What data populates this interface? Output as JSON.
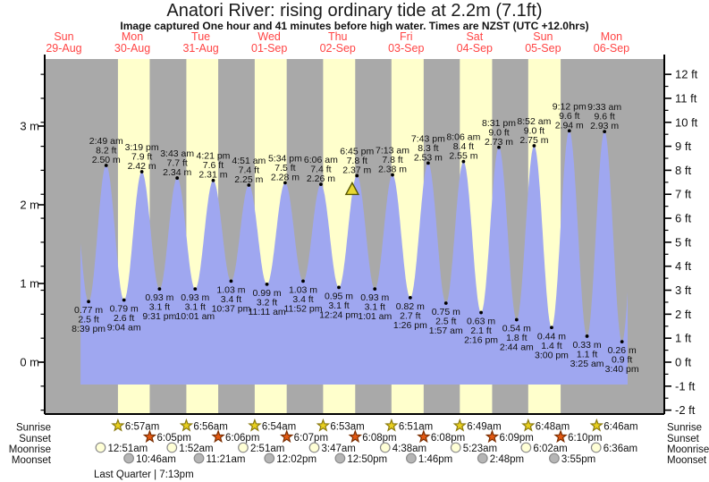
{
  "title": "Anatori River: rising ordinary tide at 2.2m (7.1ft)",
  "subtitle": "Image captured One hour and 41 minutes before high water. Times are NZST (UTC +12.0hrs)",
  "days": [
    {
      "name": "Sun",
      "date": "29-Aug"
    },
    {
      "name": "Mon",
      "date": "30-Aug"
    },
    {
      "name": "Tue",
      "date": "31-Aug"
    },
    {
      "name": "Wed",
      "date": "01-Sep"
    },
    {
      "name": "Thu",
      "date": "02-Sep"
    },
    {
      "name": "Fri",
      "date": "03-Sep"
    },
    {
      "name": "Sat",
      "date": "04-Sep"
    },
    {
      "name": "Sun",
      "date": "05-Sep"
    },
    {
      "name": "Mon",
      "date": "06-Sep"
    }
  ],
  "y_axis": {
    "left_tick_labels": [
      "0 m",
      "1 m",
      "2 m",
      "3 m"
    ],
    "right_unit": "ft",
    "right_min_ft": -2,
    "right_max_ft": 12
  },
  "chart_data": {
    "type": "area",
    "series_name": "tide height",
    "units": {
      "primary": "m",
      "secondary": "ft"
    },
    "ylim_m": [
      -0.66,
      3.85
    ],
    "x_domain": "Sun 29-Aug 05:16 to Tue 07-Sep 06:28 NZST",
    "visible_start": {
      "day": 0,
      "time": "5:50 pm"
    },
    "visible_end": {
      "day": 8,
      "time": "5:40 pm"
    },
    "current_time_marker": {
      "day": 4,
      "time": "5:04 pm",
      "level_m": 2.2,
      "symbol": "yellow-triangle"
    },
    "daylight_band_days": [
      1,
      2,
      3,
      4,
      5,
      6,
      7
    ],
    "extremes": [
      {
        "kind": "low",
        "day": 0,
        "time": "8:39 pm",
        "m": 0.77,
        "ft": 2.5
      },
      {
        "kind": "high",
        "day": 1,
        "time": "2:49 am",
        "m": 2.5,
        "ft": 8.2
      },
      {
        "kind": "low",
        "day": 1,
        "time": "9:04 am",
        "m": 0.79,
        "ft": 2.6
      },
      {
        "kind": "high",
        "day": 1,
        "time": "3:19 pm",
        "m": 2.42,
        "ft": 7.9
      },
      {
        "kind": "low",
        "day": 1,
        "time": "9:31 pm",
        "m": 0.93,
        "ft": 3.1
      },
      {
        "kind": "high",
        "day": 2,
        "time": "3:43 am",
        "m": 2.34,
        "ft": 7.7
      },
      {
        "kind": "low",
        "day": 2,
        "time": "10:01 am",
        "m": 0.93,
        "ft": 3.1
      },
      {
        "kind": "high",
        "day": 2,
        "time": "4:21 pm",
        "m": 2.31,
        "ft": 7.6
      },
      {
        "kind": "low",
        "day": 2,
        "time": "10:37 pm",
        "m": 1.03,
        "ft": 3.4
      },
      {
        "kind": "high",
        "day": 3,
        "time": "4:51 am",
        "m": 2.25,
        "ft": 7.4
      },
      {
        "kind": "low",
        "day": 3,
        "time": "11:11 am",
        "m": 0.99,
        "ft": 3.2
      },
      {
        "kind": "high",
        "day": 3,
        "time": "5:34 pm",
        "m": 2.28,
        "ft": 7.5
      },
      {
        "kind": "low",
        "day": 3,
        "time": "11:52 pm",
        "m": 1.03,
        "ft": 3.4
      },
      {
        "kind": "high",
        "day": 4,
        "time": "6:06 am",
        "m": 2.26,
        "ft": 7.4
      },
      {
        "kind": "low",
        "day": 4,
        "time": "12:24 pm",
        "m": 0.95,
        "ft": 3.1
      },
      {
        "kind": "high",
        "day": 4,
        "time": "6:45 pm",
        "m": 2.37,
        "ft": 7.8
      },
      {
        "kind": "low",
        "day": 5,
        "time": "1:01 am",
        "m": 0.93,
        "ft": 3.1
      },
      {
        "kind": "high",
        "day": 5,
        "time": "7:13 am",
        "m": 2.38,
        "ft": 7.8
      },
      {
        "kind": "low",
        "day": 5,
        "time": "1:26 pm",
        "m": 0.82,
        "ft": 2.7
      },
      {
        "kind": "high",
        "day": 5,
        "time": "7:43 pm",
        "m": 2.53,
        "ft": 8.3
      },
      {
        "kind": "low",
        "day": 6,
        "time": "1:57 am",
        "m": 0.75,
        "ft": 2.5
      },
      {
        "kind": "high",
        "day": 6,
        "time": "8:06 am",
        "m": 2.55,
        "ft": 8.4
      },
      {
        "kind": "low",
        "day": 6,
        "time": "2:16 pm",
        "m": 0.63,
        "ft": 2.1
      },
      {
        "kind": "high",
        "day": 6,
        "time": "8:31 pm",
        "m": 2.73,
        "ft": 9.0
      },
      {
        "kind": "low",
        "day": 7,
        "time": "2:44 am",
        "m": 0.54,
        "ft": 1.8
      },
      {
        "kind": "high",
        "day": 7,
        "time": "8:52 am",
        "m": 2.75,
        "ft": 9.0
      },
      {
        "kind": "low",
        "day": 7,
        "time": "3:00 pm",
        "m": 0.44,
        "ft": 1.4
      },
      {
        "kind": "high",
        "day": 7,
        "time": "9:12 pm",
        "m": 2.94,
        "ft": 9.6
      },
      {
        "kind": "low",
        "day": 8,
        "time": "3:25 am",
        "m": 0.33,
        "ft": 1.1
      },
      {
        "kind": "high",
        "day": 8,
        "time": "9:33 am",
        "m": 2.93,
        "ft": 9.6
      },
      {
        "kind": "low",
        "day": 8,
        "time": "3:40 pm",
        "m": 0.26,
        "ft": 0.9
      }
    ]
  },
  "almanac": {
    "row_labels": [
      "Sunrise",
      "Sunset",
      "Moonrise",
      "Moonset"
    ],
    "sunrise": {
      "label": "Sunrise",
      "icon": "sunrise-star-icon",
      "entries": [
        {
          "day": 1,
          "time": "6:57am"
        },
        {
          "day": 2,
          "time": "6:56am"
        },
        {
          "day": 3,
          "time": "6:54am"
        },
        {
          "day": 4,
          "time": "6:53am"
        },
        {
          "day": 5,
          "time": "6:51am"
        },
        {
          "day": 6,
          "time": "6:49am"
        },
        {
          "day": 7,
          "time": "6:48am"
        },
        {
          "day": 8,
          "time": "6:46am"
        }
      ]
    },
    "sunset": {
      "label": "Sunset",
      "icon": "sunset-star-icon",
      "entries": [
        {
          "day": 1,
          "time": "6:05pm"
        },
        {
          "day": 2,
          "time": "6:06pm"
        },
        {
          "day": 3,
          "time": "6:07pm"
        },
        {
          "day": 4,
          "time": "6:08pm"
        },
        {
          "day": 5,
          "time": "6:08pm"
        },
        {
          "day": 6,
          "time": "6:09pm"
        },
        {
          "day": 7,
          "time": "6:10pm"
        }
      ]
    },
    "moonrise": {
      "label": "Moonrise",
      "icon": "moonrise-circle-icon",
      "entries": [
        {
          "day": 1,
          "time": "12:51am"
        },
        {
          "day": 2,
          "time": "1:52am"
        },
        {
          "day": 3,
          "time": "2:51am"
        },
        {
          "day": 4,
          "time": "3:47am"
        },
        {
          "day": 5,
          "time": "4:38am"
        },
        {
          "day": 6,
          "time": "5:23am"
        },
        {
          "day": 7,
          "time": "6:02am"
        },
        {
          "day": 8,
          "time": "6:36am"
        }
      ]
    },
    "moonset": {
      "label": "Moonset",
      "icon": "moonset-circle-icon",
      "entries": [
        {
          "day": 1,
          "time": "10:46am"
        },
        {
          "day": 2,
          "time": "11:21am"
        },
        {
          "day": 3,
          "time": "12:02pm"
        },
        {
          "day": 4,
          "time": "12:50pm"
        },
        {
          "day": 5,
          "time": "1:46pm"
        },
        {
          "day": 6,
          "time": "2:48pm"
        },
        {
          "day": 7,
          "time": "3:55pm"
        }
      ]
    },
    "moon_phase": "Last Quarter | 7:13pm"
  },
  "colors": {
    "night_bg": "#a9a9a9",
    "daylight_band": "#ffffcc",
    "tide_fill": "#9fa7f0",
    "day_label": "#ff4444",
    "annotation_text": "#111111",
    "sunrise_star": "#e8cf1e",
    "sunrise_star_border": "#8a7a10",
    "sunset_star": "#e25812",
    "sunset_star_border": "#7a2d00",
    "moonrise_circle": "#ffffd6",
    "moonset_circle": "#b5b5b5",
    "moon_border": "#8a8a8a",
    "marker_fill": "#e8d832",
    "marker_border": "#555500"
  }
}
